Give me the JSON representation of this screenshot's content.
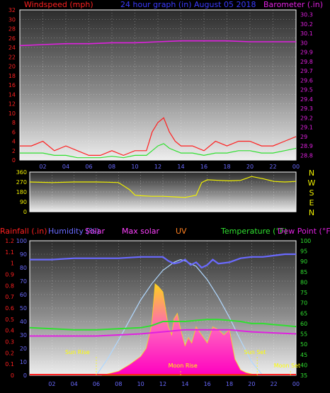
{
  "chart_data": [
    {
      "type": "line",
      "title": "24 hour graph (in)   August 05 2018",
      "y_left_label": "Windspeed (mph)",
      "y_right_label": "Barometer (.in)",
      "x_ticks": [
        "02",
        "04",
        "06",
        "08",
        "10",
        "12",
        "14",
        "16",
        "18",
        "20",
        "22",
        "00"
      ],
      "y_left_ticks": [
        "0",
        "2",
        "4",
        "6",
        "8",
        "10",
        "12",
        "14",
        "16",
        "18",
        "20",
        "22",
        "24",
        "26",
        "28",
        "30",
        "32"
      ],
      "y_left_range": [
        0,
        32
      ],
      "y_right_ticks": [
        "28.8",
        "28.9",
        "29",
        "29.1",
        "29.2",
        "29.3",
        "29.4",
        "29.5",
        "29.6",
        "29.7",
        "29.8",
        "29.9",
        "30",
        "30.1",
        "30.2",
        "30.3"
      ],
      "y_right_range": [
        28.75,
        30.35
      ],
      "x_range": [
        0,
        24
      ],
      "grid": true,
      "colors": {
        "wind_gust": "#ff2020",
        "wind_avg": "#30e030",
        "barometer": "#e020e0"
      },
      "series": [
        {
          "id": "wind_gust",
          "axis": "left",
          "x": [
            0,
            1,
            2,
            3,
            4,
            5,
            6,
            7,
            8,
            9,
            10,
            11,
            11.5,
            12,
            12.5,
            13,
            13.5,
            14,
            15,
            16,
            17,
            18,
            19,
            20,
            21,
            22,
            23,
            24
          ],
          "values": [
            3,
            3,
            4,
            2,
            3,
            2,
            1,
            1,
            2,
            1,
            2,
            2,
            6,
            8,
            9,
            6,
            4,
            3,
            3,
            2,
            4,
            3,
            4,
            4,
            3,
            3,
            4,
            5
          ]
        },
        {
          "id": "wind_avg",
          "axis": "left",
          "x": [
            0,
            1,
            2,
            3,
            4,
            5,
            6,
            7,
            8,
            9,
            10,
            11,
            11.5,
            12,
            12.5,
            13,
            13.5,
            14,
            15,
            16,
            17,
            18,
            19,
            20,
            21,
            22,
            23,
            24
          ],
          "values": [
            1.5,
            1.5,
            1.5,
            1,
            1,
            0.5,
            0.5,
            0.5,
            0.8,
            0.5,
            1,
            1,
            2,
            3,
            3.5,
            2.5,
            2,
            1.5,
            1.5,
            1,
            1.5,
            1.5,
            2,
            2,
            1.5,
            1.5,
            2,
            2.5
          ]
        },
        {
          "id": "barometer",
          "axis": "right",
          "x": [
            0,
            2,
            4,
            6,
            8,
            10,
            12,
            14,
            16,
            18,
            20,
            22,
            24
          ],
          "values": [
            29.97,
            29.98,
            29.99,
            29.99,
            30.0,
            30.0,
            30.01,
            30.02,
            30.02,
            30.02,
            30.01,
            30.01,
            30.01
          ]
        }
      ]
    },
    {
      "type": "line",
      "y_ticks": [
        "0",
        "90",
        "180",
        "270",
        "360"
      ],
      "y_range": [
        0,
        360
      ],
      "compass_labels": [
        "N",
        "W",
        "S",
        "E",
        "N"
      ],
      "x_range": [
        0,
        24
      ],
      "grid": true,
      "colors": {
        "wind_direction": "#f0f000"
      },
      "series": [
        {
          "id": "wind_direction",
          "x": [
            0,
            2,
            4,
            6,
            7,
            8,
            9,
            9.5,
            10,
            11,
            12,
            13,
            14,
            15,
            15.5,
            16,
            17,
            18,
            19,
            20,
            21,
            22,
            23,
            24
          ],
          "values": [
            270,
            265,
            270,
            270,
            268,
            265,
            200,
            150,
            145,
            140,
            140,
            135,
            130,
            150,
            265,
            290,
            285,
            280,
            285,
            320,
            300,
            275,
            270,
            275
          ]
        }
      ]
    },
    {
      "type": "area",
      "y_left_label_1": "Rainfall (.in)",
      "y_left_label_2": "Humidity (%)",
      "y_top_label_solar": "Solar",
      "y_top_label_maxsolar": "Max solar",
      "y_top_label_uv": "UV",
      "y_right_label_1": "Temperature (°F)",
      "y_right_label_2": "Dew Point (°F)",
      "rain_ticks": [
        "0",
        "0.1",
        "0.2",
        "0.3",
        "0.4",
        "0.5",
        "0.6",
        "0.7",
        "0.8",
        "0.9",
        "1",
        "1.1",
        "1.2"
      ],
      "humidity_ticks": [
        "0",
        "10",
        "20",
        "30",
        "40",
        "50",
        "60",
        "70",
        "80",
        "90",
        "100"
      ],
      "temp_ticks": [
        "35",
        "40",
        "45",
        "50",
        "55",
        "60",
        "65",
        "70",
        "75",
        "80",
        "85",
        "90",
        "95",
        "100"
      ],
      "x_ticks": [
        "02",
        "04",
        "06",
        "08",
        "10",
        "12",
        "14",
        "16",
        "18",
        "20",
        "22",
        "00"
      ],
      "x_range": [
        0,
        24
      ],
      "humidity_range": [
        0,
        100
      ],
      "temp_range": [
        35,
        100
      ],
      "grid": true,
      "annotations": [
        "Sun Rise",
        "Moon Rise",
        "Sun Set",
        "Moon Set"
      ],
      "colors": {
        "humidity": "#6a6aff",
        "temperature": "#30e030",
        "dewpoint": "#e020e0",
        "maxsolar": "#b0d8ff",
        "solar": "#ff40ff",
        "solar_top": "#ffd020",
        "rainfall": "#ff2020",
        "sun_marker": "#ffff00"
      },
      "series": [
        {
          "id": "humidity",
          "axis": "humidity",
          "x": [
            0,
            2,
            4,
            6,
            8,
            10,
            11,
            12,
            12.5,
            13,
            13.5,
            14,
            14.5,
            15,
            15.5,
            16,
            16.5,
            17,
            18,
            19,
            20,
            21,
            22,
            23,
            24
          ],
          "values": [
            86,
            86,
            87,
            87,
            87,
            88,
            88,
            88,
            85,
            83,
            84,
            86,
            82,
            84,
            80,
            82,
            86,
            83,
            84,
            87,
            88,
            88,
            89,
            90,
            90
          ]
        },
        {
          "id": "temperature",
          "axis": "temp",
          "x": [
            0,
            2,
            4,
            6,
            8,
            10,
            11,
            12,
            13,
            14,
            15,
            16,
            17,
            18,
            19,
            20,
            21,
            22,
            23,
            24
          ],
          "values": [
            58,
            57.5,
            57,
            57,
            57.5,
            58,
            59,
            61,
            61,
            61,
            61.5,
            62,
            62,
            61.5,
            61,
            60,
            60,
            59.5,
            59,
            58.5
          ]
        },
        {
          "id": "dewpoint",
          "axis": "temp",
          "x": [
            0,
            2,
            4,
            6,
            8,
            10,
            12,
            14,
            16,
            18,
            20,
            22,
            24
          ],
          "values": [
            54,
            54,
            54,
            54,
            54.5,
            55,
            56,
            57,
            57,
            57,
            56,
            55.5,
            55
          ]
        },
        {
          "id": "maxsolar",
          "axis": "humidity",
          "x": [
            6,
            7,
            8,
            9,
            10,
            11,
            12,
            13,
            13.6,
            14,
            15,
            16,
            17,
            18,
            19,
            20,
            21
          ],
          "values": [
            0,
            12,
            26,
            41,
            56,
            68,
            78,
            84,
            86,
            85,
            81,
            71,
            58,
            43,
            26,
            10,
            0
          ]
        },
        {
          "id": "solar",
          "axis": "humidity",
          "x": [
            6.5,
            7,
            8,
            9,
            10,
            10.5,
            11,
            11.3,
            11.6,
            12,
            12.5,
            12.8,
            13,
            13.3,
            13.6,
            14,
            14.3,
            14.6,
            15,
            15.5,
            16,
            16.5,
            17,
            17.5,
            18,
            18.5,
            19,
            19.5,
            20,
            20.5
          ],
          "values": [
            0,
            1,
            3,
            8,
            14,
            20,
            38,
            68,
            66,
            62,
            36,
            30,
            42,
            46,
            34,
            22,
            28,
            24,
            36,
            30,
            24,
            36,
            34,
            30,
            34,
            12,
            4,
            2,
            1,
            0
          ]
        }
      ]
    }
  ]
}
